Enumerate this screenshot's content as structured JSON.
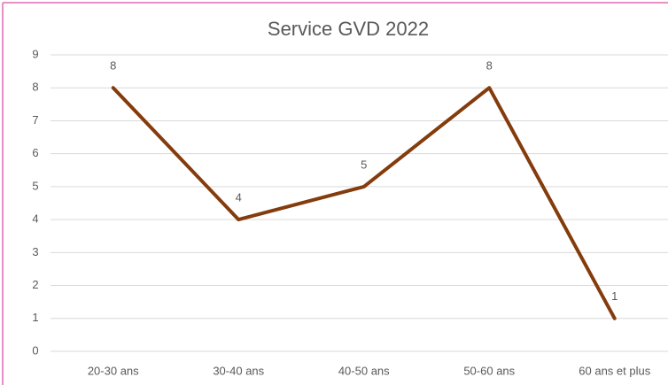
{
  "chart_data": {
    "type": "line",
    "title": "Service GVD 2022",
    "categories": [
      "20-30 ans",
      "30-40 ans",
      "40-50 ans",
      "50-60 ans",
      "60 ans et plus"
    ],
    "series": [
      {
        "name": "Service GVD 2022",
        "color": "#843c0c",
        "values": [
          8,
          4,
          5,
          8,
          1
        ]
      }
    ],
    "ylim": [
      0,
      9
    ],
    "yticks": [
      0,
      1,
      2,
      3,
      4,
      5,
      6,
      7,
      8,
      9
    ],
    "grid": true,
    "data_labels": true
  }
}
